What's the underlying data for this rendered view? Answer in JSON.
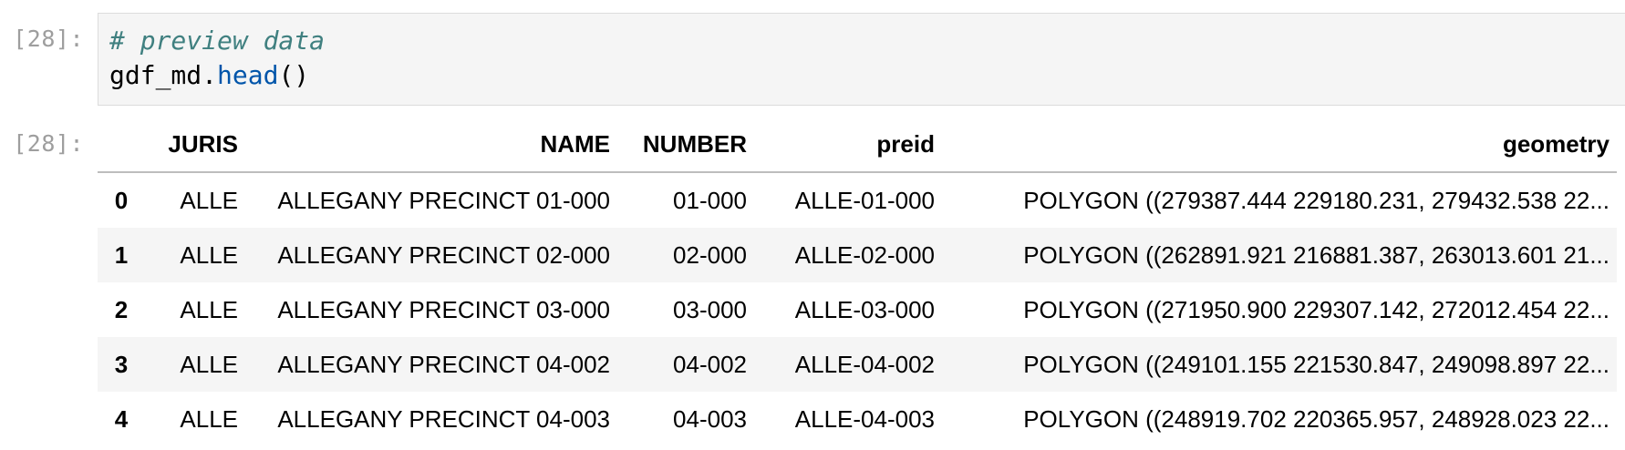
{
  "cells": {
    "input_prompt": "[28]:",
    "output_prompt": "[28]:",
    "code": {
      "comment": "# preview data",
      "line2_var": "gdf_md.",
      "line2_fn": "head",
      "line2_parens": "()"
    }
  },
  "table": {
    "columns": [
      "",
      "JURIS",
      "NAME",
      "NUMBER",
      "preid",
      "geometry"
    ],
    "rows": [
      {
        "index": "0",
        "JURIS": "ALLE",
        "NAME": "ALLEGANY PRECINCT 01-000",
        "NUMBER": "01-000",
        "preid": "ALLE-01-000",
        "geometry": "POLYGON ((279387.444 229180.231, 279432.538 22..."
      },
      {
        "index": "1",
        "JURIS": "ALLE",
        "NAME": "ALLEGANY PRECINCT 02-000",
        "NUMBER": "02-000",
        "preid": "ALLE-02-000",
        "geometry": "POLYGON ((262891.921 216881.387, 263013.601 21..."
      },
      {
        "index": "2",
        "JURIS": "ALLE",
        "NAME": "ALLEGANY PRECINCT 03-000",
        "NUMBER": "03-000",
        "preid": "ALLE-03-000",
        "geometry": "POLYGON ((271950.900 229307.142, 272012.454 22..."
      },
      {
        "index": "3",
        "JURIS": "ALLE",
        "NAME": "ALLEGANY PRECINCT 04-002",
        "NUMBER": "04-002",
        "preid": "ALLE-04-002",
        "geometry": "POLYGON ((249101.155 221530.847, 249098.897 22..."
      },
      {
        "index": "4",
        "JURIS": "ALLE",
        "NAME": "ALLEGANY PRECINCT 04-003",
        "NUMBER": "04-003",
        "preid": "ALLE-04-003",
        "geometry": "POLYGON ((248919.702 220365.957, 248928.023 22..."
      }
    ]
  }
}
